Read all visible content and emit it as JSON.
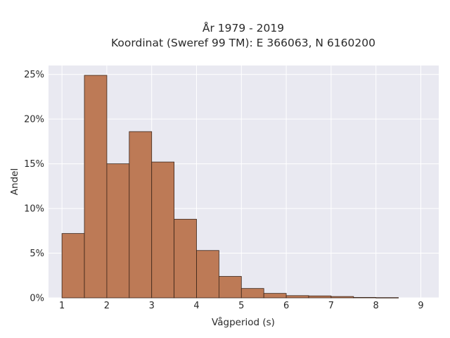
{
  "chart_data": {
    "type": "bar",
    "title_line1": "År 1979 - 2019",
    "title_line2": "Koordinat (Sweref 99 TM): E 366063, N 6160200",
    "xlabel": "Vågperiod (s)",
    "ylabel": "Andel",
    "x_ticks": [
      1,
      2,
      3,
      4,
      5,
      6,
      7,
      8,
      9
    ],
    "y_ticks": [
      0,
      5,
      10,
      15,
      20,
      25
    ],
    "y_tick_labels": [
      "0%",
      "5%",
      "10%",
      "15%",
      "20%",
      "25%"
    ],
    "xlim": [
      0.7,
      9.4
    ],
    "ylim": [
      0,
      26
    ],
    "bin_width": 0.5,
    "bins": [
      {
        "x": 1.0,
        "value": 7.2
      },
      {
        "x": 1.5,
        "value": 24.9
      },
      {
        "x": 2.0,
        "value": 15.0
      },
      {
        "x": 2.5,
        "value": 18.6
      },
      {
        "x": 3.0,
        "value": 15.2
      },
      {
        "x": 3.5,
        "value": 8.8
      },
      {
        "x": 4.0,
        "value": 5.3
      },
      {
        "x": 4.5,
        "value": 2.4
      },
      {
        "x": 5.0,
        "value": 1.05
      },
      {
        "x": 5.5,
        "value": 0.5
      },
      {
        "x": 6.0,
        "value": 0.25
      },
      {
        "x": 6.5,
        "value": 0.22
      },
      {
        "x": 7.0,
        "value": 0.15
      },
      {
        "x": 7.5,
        "value": 0.05
      },
      {
        "x": 8.0,
        "value": 0.03
      },
      {
        "x": 8.5,
        "value": 0.0
      }
    ],
    "bar_color": "#bd7a56",
    "edge_color": "#3a2418",
    "plot_background": "#e9e9f1",
    "grid": true
  }
}
